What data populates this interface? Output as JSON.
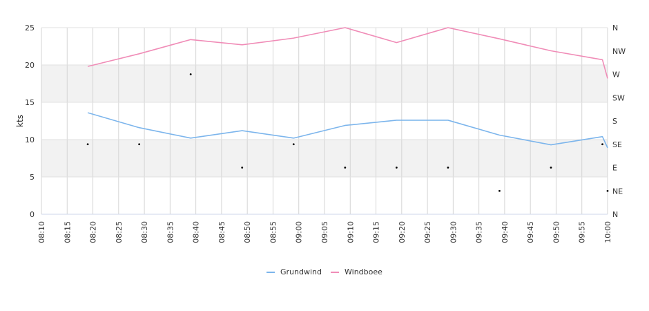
{
  "chart_data": {
    "type": "line",
    "title": "",
    "xlabel": "",
    "ylabel": "kts",
    "ylim": [
      0,
      25
    ],
    "y_ticks": [
      0,
      5,
      10,
      15,
      20,
      25
    ],
    "x_ticks": [
      "08:10",
      "08:15",
      "08:20",
      "08:25",
      "08:30",
      "08:35",
      "08:40",
      "08:45",
      "08:50",
      "08:55",
      "09:00",
      "09:05",
      "09:10",
      "09:15",
      "09:20",
      "09:25",
      "09:30",
      "09:35",
      "09:40",
      "09:45",
      "09:50",
      "09:55",
      "10:00"
    ],
    "x_range": [
      "08:10",
      "10:00"
    ],
    "grid": true,
    "y_bands": [
      [
        5,
        10
      ],
      [
        15,
        20
      ]
    ],
    "legend_position": "bottom",
    "right_axis": {
      "labels": [
        "N",
        "NE",
        "E",
        "SE",
        "S",
        "SW",
        "W",
        "NW",
        "N"
      ],
      "range": [
        0,
        360
      ]
    },
    "series": [
      {
        "name": "Grundwind",
        "color": "#7cb5ec",
        "x": [
          "08:19",
          "08:29",
          "08:39",
          "08:49",
          "08:59",
          "09:09",
          "09:19",
          "09:29",
          "09:39",
          "09:49",
          "09:59",
          "10:00"
        ],
        "values": [
          13.6,
          11.6,
          10.2,
          11.2,
          10.2,
          11.9,
          12.6,
          12.6,
          10.6,
          9.3,
          10.4,
          8.9
        ]
      },
      {
        "name": "Windboee",
        "color": "#f08cb7",
        "x": [
          "08:19",
          "08:29",
          "08:39",
          "08:49",
          "08:59",
          "09:09",
          "09:19",
          "09:29",
          "09:39",
          "09:49",
          "09:59",
          "10:00"
        ],
        "values": [
          19.8,
          21.5,
          23.4,
          22.7,
          23.6,
          25.0,
          23.0,
          25.0,
          23.5,
          21.9,
          20.7,
          18.2
        ]
      },
      {
        "type": "scatter",
        "x": [
          "08:19",
          "08:29",
          "08:39",
          "08:49",
          "08:59",
          "09:09",
          "09:19",
          "09:29",
          "09:39",
          "09:49",
          "09:59",
          "10:00"
        ],
        "values": [
          135,
          135,
          270,
          90,
          135,
          90,
          90,
          90,
          45,
          90,
          135,
          45
        ]
      }
    ]
  }
}
